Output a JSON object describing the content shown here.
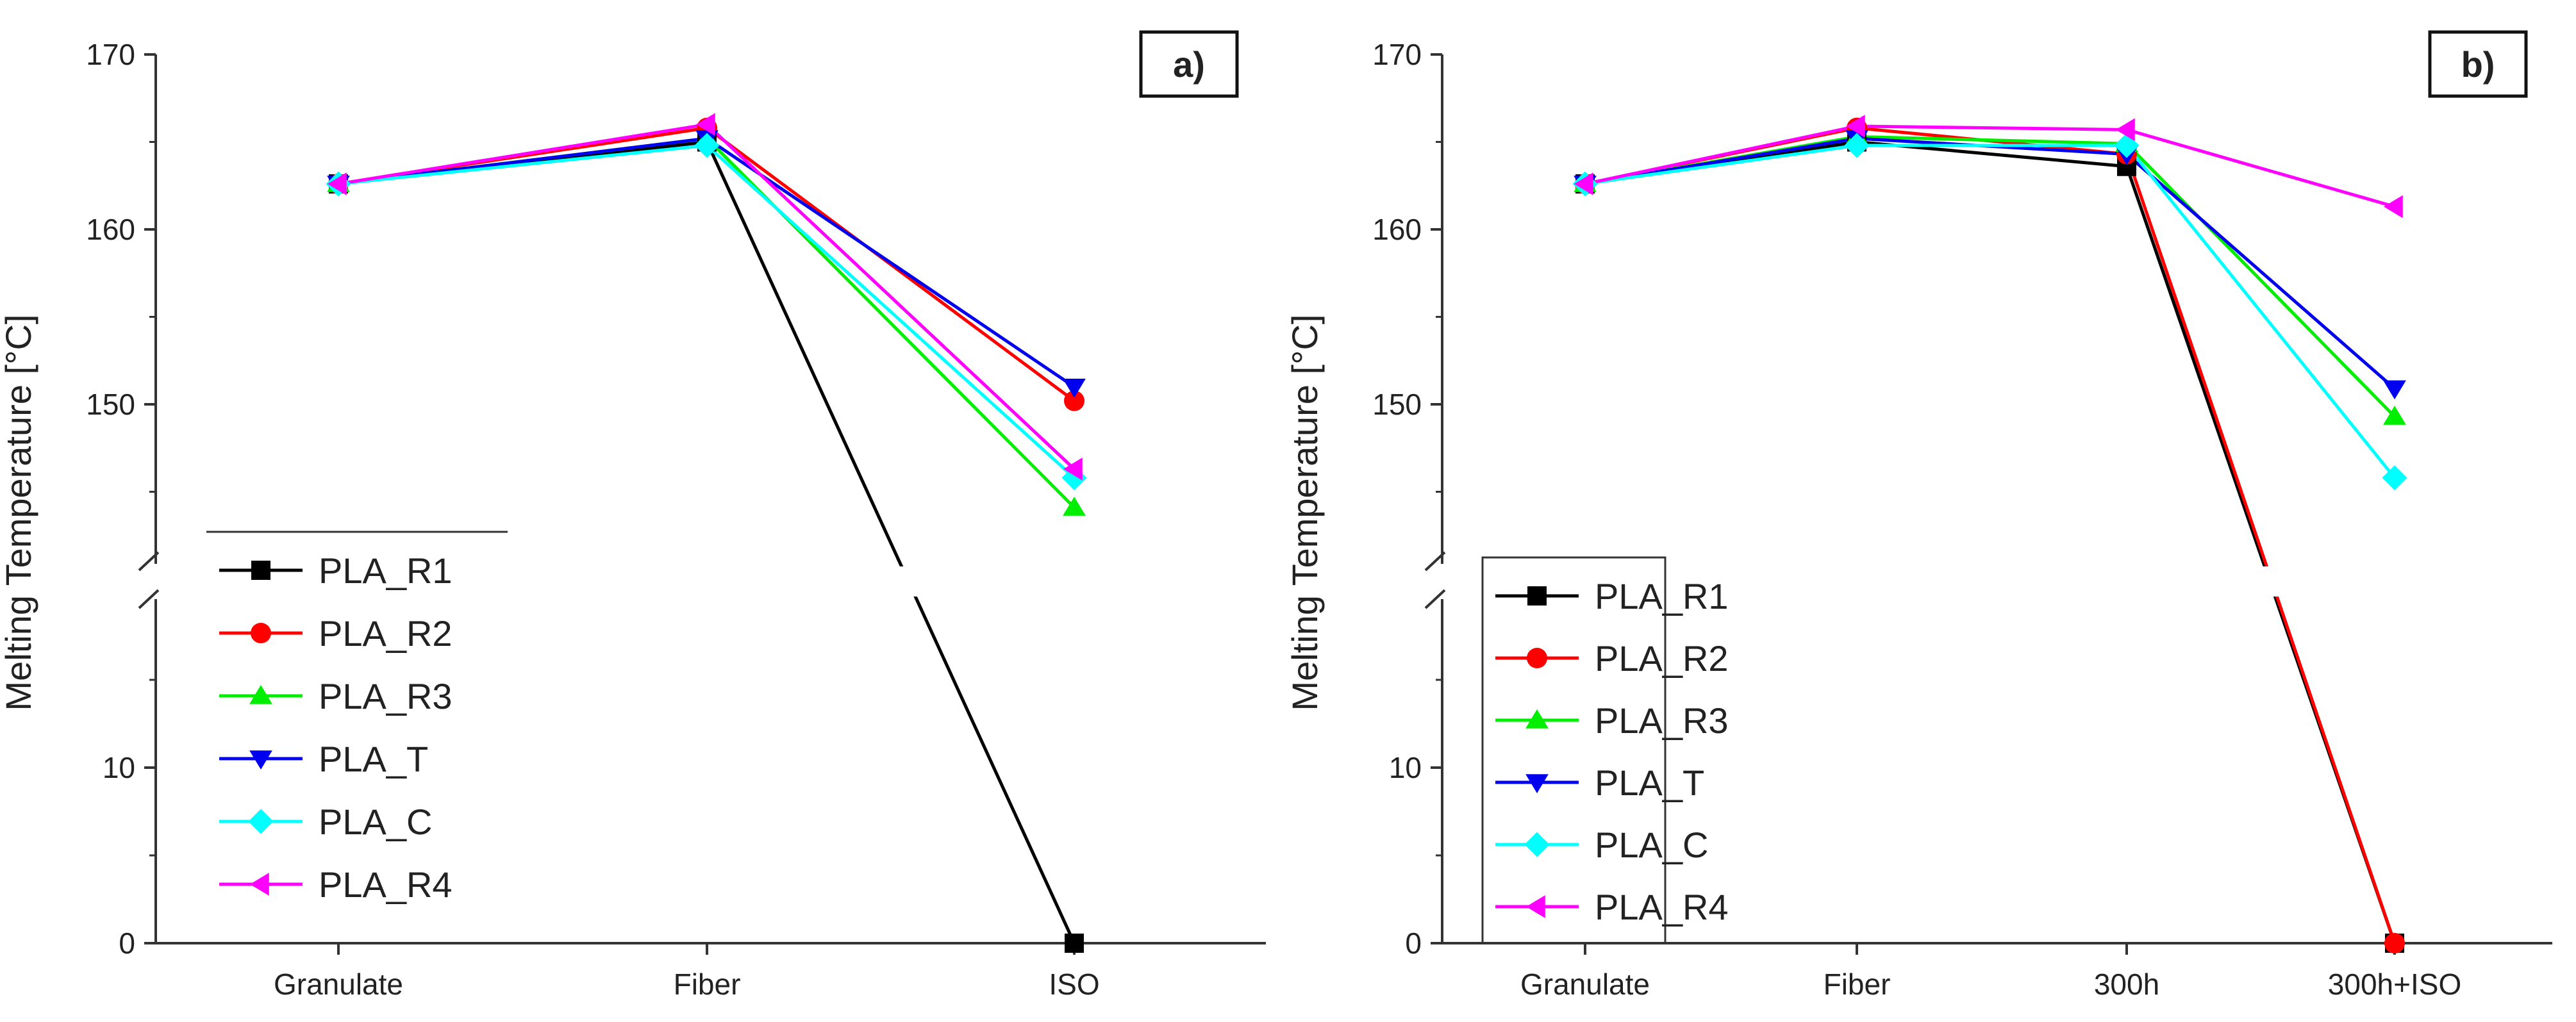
{
  "chart_data": [
    {
      "type": "line",
      "panel_label": "a)",
      "ylabel": "Melting Temperature [°C]",
      "xlabel": "",
      "categories": [
        "Granulate",
        "Fiber",
        "ISO"
      ],
      "y_ticks_lower": [
        0,
        10
      ],
      "y_ticks_upper": [
        150,
        160,
        170
      ],
      "y_axis_break": {
        "lower_range": [
          0,
          20
        ],
        "upper_range": [
          140,
          170
        ]
      },
      "legend_position": "bottom-left",
      "series": [
        {
          "name": "PLA_R1",
          "color": "#000000",
          "marker": "square",
          "values": [
            162.6,
            165.0,
            0
          ]
        },
        {
          "name": "PLA_R2",
          "color": "#ff0000",
          "marker": "circle",
          "values": [
            162.6,
            165.8,
            150.2
          ]
        },
        {
          "name": "PLA_R3",
          "color": "#00ee00",
          "marker": "triangle-up",
          "values": [
            162.6,
            165.2,
            144.1
          ]
        },
        {
          "name": "PLA_T",
          "color": "#0000ee",
          "marker": "triangle-down",
          "values": [
            162.6,
            165.2,
            151.0
          ]
        },
        {
          "name": "PLA_C",
          "color": "#00ffff",
          "marker": "diamond",
          "values": [
            162.6,
            164.8,
            145.8
          ]
        },
        {
          "name": "PLA_R4",
          "color": "#ff00ff",
          "marker": "triangle-left",
          "values": [
            162.6,
            166.0,
            146.3
          ]
        }
      ]
    },
    {
      "type": "line",
      "panel_label": "b)",
      "ylabel": "Melting Temperature [°C]",
      "xlabel": "",
      "categories": [
        "Granulate",
        "Fiber",
        "300h",
        "300h+ISO"
      ],
      "y_ticks_lower": [
        0,
        10
      ],
      "y_ticks_upper": [
        150,
        160,
        170
      ],
      "y_axis_break": {
        "lower_range": [
          0,
          20
        ],
        "upper_range": [
          140,
          170
        ]
      },
      "legend_position": "bottom-left",
      "series": [
        {
          "name": "PLA_R1",
          "color": "#000000",
          "marker": "square",
          "values": [
            162.6,
            165.0,
            163.6,
            0
          ]
        },
        {
          "name": "PLA_R2",
          "color": "#ff0000",
          "marker": "circle",
          "values": [
            162.6,
            165.8,
            164.3,
            0
          ]
        },
        {
          "name": "PLA_R3",
          "color": "#00ee00",
          "marker": "triangle-up",
          "values": [
            162.6,
            165.3,
            164.9,
            149.3
          ]
        },
        {
          "name": "PLA_T",
          "color": "#0000ee",
          "marker": "triangle-down",
          "values": [
            162.6,
            165.2,
            164.3,
            150.9
          ]
        },
        {
          "name": "PLA_C",
          "color": "#00ffff",
          "marker": "diamond",
          "values": [
            162.6,
            164.8,
            164.8,
            145.8
          ]
        },
        {
          "name": "PLA_R4",
          "color": "#ff00ff",
          "marker": "triangle-left",
          "values": [
            162.6,
            165.9,
            165.7,
            161.3
          ]
        }
      ]
    }
  ]
}
